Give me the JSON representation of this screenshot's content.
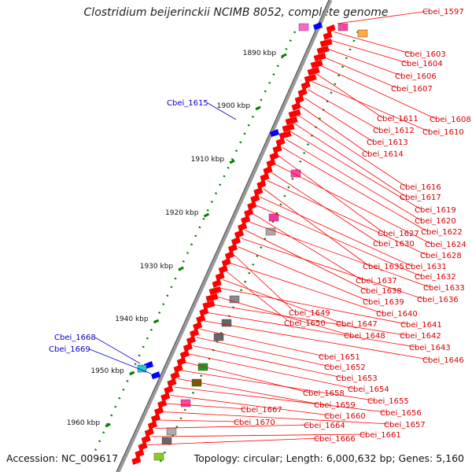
{
  "title": "Clostridium beijerinckii NCIMB 8052, complete genome",
  "footer": {
    "accession": "Accession: NC_009617",
    "topology": "Topology: circular; Length: 6,000,632 bp; Genes: 5,160"
  },
  "colors": {
    "forward": "#ff0000",
    "reverse": "#0000ff",
    "tick": "#008000",
    "backbone": "#888888"
  },
  "scale_labels": [
    "1890 kbp",
    "1900 kbp",
    "1910 kbp",
    "1920 kbp",
    "1930 kbp",
    "1940 kbp",
    "1950 kbp",
    "1960 kbp"
  ],
  "genes_right": [
    "Cbei_1597",
    "Cbei_1603",
    "Cbei_1604",
    "Cbei_1606",
    "Cbei_1607",
    "Cbei_1608",
    "Cbei_1611",
    "Cbei_1610",
    "Cbei_1612",
    "Cbei_1613",
    "Cbei_1614",
    "Cbei_1616",
    "Cbei_1617",
    "Cbei_1619",
    "Cbei_1620",
    "Cbei_1622",
    "Cbei_1627",
    "Cbei_1624",
    "Cbei_1630",
    "Cbei_1628",
    "Cbei_1635",
    "Cbei_1631",
    "Cbei_1632",
    "Cbei_1637",
    "Cbei_1633",
    "Cbei_1638",
    "Cbei_1636",
    "Cbei_1639",
    "Cbei_1649",
    "Cbei_1640",
    "Cbei_1650",
    "Cbei_1647",
    "Cbei_1641",
    "Cbei_1648",
    "Cbei_1642",
    "Cbei_1643",
    "Cbei_1646",
    "Cbei_1651",
    "Cbei_1652",
    "Cbei_1653",
    "Cbei_1654",
    "Cbei_1658",
    "Cbei_1655",
    "Cbei_1659",
    "Cbei_1656",
    "Cbei_1660",
    "Cbei_1667",
    "Cbei_1657",
    "Cbei_1670",
    "Cbei_1664",
    "Cbei_1661",
    "Cbei_1666"
  ],
  "genes_left": [
    "Cbei_1615",
    "Cbei_1668",
    "Cbei_1669"
  ]
}
